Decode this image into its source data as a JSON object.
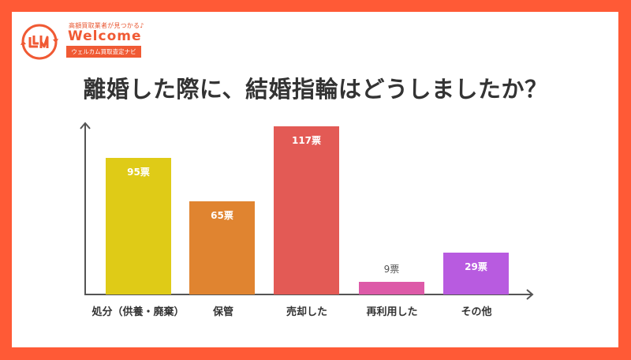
{
  "logo": {
    "tagline": "高額買取業者が見つかる♪",
    "wordmark": "Welcome",
    "badge": "ウェルカム買取査定ナビ",
    "colors": {
      "primary": "#F05A34",
      "accent": "#3BA8E8"
    }
  },
  "frame": {
    "color": "#FF5A36",
    "background": "#FFFFFF"
  },
  "title": "離婚した際に、結婚指輪はどうしましたか？",
  "chart_data": {
    "type": "bar",
    "title": "離婚した際に、結婚指輪はどうしましたか？",
    "xlabel": "",
    "ylabel": "",
    "unit": "票",
    "categories": [
      "処分（供養・廃棄）",
      "保管",
      "売却した",
      "再利用した",
      "その他"
    ],
    "values": [
      95,
      65,
      117,
      9,
      29
    ],
    "value_labels": [
      "95票",
      "65票",
      "117票",
      "9票",
      "29票"
    ],
    "colors": [
      "#DFCB17",
      "#E08430",
      "#E35A55",
      "#DD5AA8",
      "#B85BE0"
    ],
    "ylim": [
      0,
      125
    ],
    "grid": false,
    "legend": "none",
    "axes": {
      "x_arrow": true,
      "y_arrow": true,
      "tick_labels_y": false
    }
  }
}
